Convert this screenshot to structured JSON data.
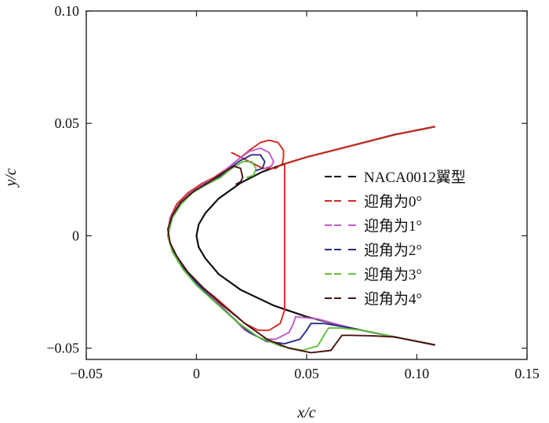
{
  "chart_data": {
    "type": "line",
    "title": "",
    "xlabel": "x/c",
    "ylabel": "y/c",
    "xlim": [
      -0.05,
      0.15
    ],
    "ylim": [
      -0.055,
      0.1
    ],
    "xticks": [
      -0.05,
      0,
      0.05,
      0.1,
      0.15
    ],
    "xtick_labels": [
      "−0.05",
      "0",
      "0.05",
      "0.10",
      "0.15"
    ],
    "yticks": [
      -0.05,
      0,
      0.05,
      0.1
    ],
    "ytick_labels": [
      "−0.05",
      "0",
      "0.05",
      "0.10"
    ],
    "legend_position": "right",
    "series": [
      {
        "name": "NACA0012翼型",
        "color": "#111111",
        "x": [
          0.108,
          0.09,
          0.07,
          0.05,
          0.035,
          0.02,
          0.01,
          0.004,
          0.001,
          0.0,
          0.001,
          0.004,
          0.01,
          0.02,
          0.03,
          0.04,
          0.05,
          0.07,
          0.09,
          0.108
        ],
        "y": [
          -0.0485,
          -0.045,
          -0.041,
          -0.036,
          -0.031,
          -0.024,
          -0.017,
          -0.01,
          -0.005,
          0.0,
          0.005,
          0.01,
          0.0165,
          0.0235,
          0.0285,
          0.032,
          0.035,
          0.04,
          0.045,
          0.0485
        ]
      },
      {
        "name": "迎角为0°",
        "color": "#d42a1f",
        "x": [
          0.108,
          0.09,
          0.07,
          0.05,
          0.04,
          0.04,
          0.038,
          0.033,
          0.028,
          0.022,
          0.015,
          0.008,
          0.0,
          -0.006,
          -0.011,
          -0.013,
          -0.012,
          -0.009,
          -0.004,
          0.002,
          0.008,
          0.014,
          0.019,
          0.024,
          0.029,
          0.033,
          0.037,
          0.0395,
          0.0395,
          0.039,
          0.036,
          0.03,
          0.024,
          0.016
        ],
        "y": [
          0.0485,
          0.045,
          0.04,
          0.035,
          0.032,
          -0.033,
          -0.039,
          -0.042,
          -0.042,
          -0.039,
          -0.033,
          -0.027,
          -0.021,
          -0.015,
          -0.007,
          0.0,
          0.008,
          0.014,
          0.019,
          0.023,
          0.026,
          0.03,
          0.034,
          0.038,
          0.0415,
          0.0425,
          0.0415,
          0.038,
          0.035,
          0.032,
          0.03,
          0.03,
          0.033,
          0.037
        ]
      },
      {
        "name": "迎角为1°",
        "color": "#c05ac8",
        "x": [
          0.108,
          0.09,
          0.07,
          0.055,
          0.045,
          0.044,
          0.042,
          0.036,
          0.03,
          0.022,
          0.015,
          0.008,
          0.0,
          -0.006,
          -0.011,
          -0.013,
          -0.012,
          -0.008,
          -0.003,
          0.003,
          0.009,
          0.014,
          0.019,
          0.024,
          0.029,
          0.033,
          0.035,
          0.034,
          0.031
        ],
        "y": [
          -0.0485,
          -0.045,
          -0.041,
          -0.037,
          -0.036,
          -0.039,
          -0.043,
          -0.046,
          -0.046,
          -0.042,
          -0.035,
          -0.028,
          -0.021,
          -0.014,
          -0.006,
          0.0,
          0.008,
          0.014,
          0.019,
          0.023,
          0.026,
          0.03,
          0.034,
          0.0375,
          0.039,
          0.037,
          0.033,
          0.031,
          0.03
        ]
      },
      {
        "name": "迎角为2°",
        "color": "#2a2c8a",
        "x": [
          0.108,
          0.09,
          0.07,
          0.058,
          0.052,
          0.05,
          0.047,
          0.04,
          0.032,
          0.024,
          0.016,
          0.008,
          0.0,
          -0.006,
          -0.011,
          -0.013,
          -0.011,
          -0.007,
          -0.002,
          0.004,
          0.01,
          0.015,
          0.02,
          0.025,
          0.029,
          0.031,
          0.03,
          0.027
        ],
        "y": [
          -0.0485,
          -0.045,
          -0.041,
          -0.039,
          -0.039,
          -0.042,
          -0.046,
          -0.048,
          -0.047,
          -0.043,
          -0.036,
          -0.029,
          -0.021,
          -0.014,
          -0.006,
          0.0,
          0.008,
          0.014,
          0.019,
          0.023,
          0.026,
          0.03,
          0.0335,
          0.036,
          0.036,
          0.033,
          0.03,
          0.029
        ]
      },
      {
        "name": "迎角为3°",
        "color": "#5fc13a",
        "x": [
          0.108,
          0.09,
          0.075,
          0.065,
          0.06,
          0.058,
          0.055,
          0.048,
          0.038,
          0.028,
          0.018,
          0.009,
          0.0,
          -0.006,
          -0.011,
          -0.013,
          -0.011,
          -0.007,
          -0.002,
          0.005,
          0.011,
          0.016,
          0.021,
          0.025,
          0.027,
          0.026,
          0.023
        ],
        "y": [
          -0.0485,
          -0.045,
          -0.042,
          -0.041,
          -0.041,
          -0.044,
          -0.049,
          -0.051,
          -0.049,
          -0.045,
          -0.038,
          -0.03,
          -0.022,
          -0.015,
          -0.007,
          0.0,
          0.008,
          0.014,
          0.019,
          0.023,
          0.026,
          0.03,
          0.033,
          0.033,
          0.03,
          0.027,
          0.026
        ]
      },
      {
        "name": "迎角为4°",
        "color": "#4a1212",
        "x": [
          0.108,
          0.09,
          0.08,
          0.07,
          0.066,
          0.064,
          0.061,
          0.052,
          0.042,
          0.032,
          0.022,
          0.012,
          0.003,
          -0.004,
          -0.009,
          -0.012,
          -0.013,
          -0.011,
          -0.007,
          -0.001,
          0.006,
          0.012,
          0.017,
          0.02,
          0.021,
          0.02,
          0.018
        ],
        "y": [
          -0.0485,
          -0.045,
          -0.0445,
          -0.0443,
          -0.0443,
          -0.047,
          -0.051,
          -0.052,
          -0.05,
          -0.046,
          -0.039,
          -0.031,
          -0.023,
          -0.016,
          -0.009,
          -0.003,
          0.003,
          0.009,
          0.015,
          0.02,
          0.024,
          0.028,
          0.031,
          0.03,
          0.026,
          0.024,
          0.023
        ]
      }
    ]
  }
}
